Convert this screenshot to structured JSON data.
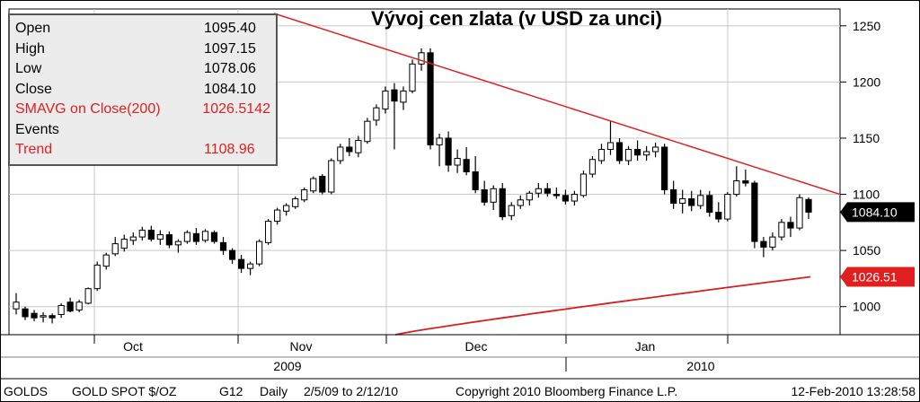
{
  "legend": {
    "rows": [
      {
        "label": "Open",
        "value": "1095.40",
        "color": "#000000"
      },
      {
        "label": "High",
        "value": "1097.15",
        "color": "#000000"
      },
      {
        "label": "Low",
        "value": "1078.06",
        "color": "#000000"
      },
      {
        "label": "Close",
        "value": "1084.10",
        "color": "#000000"
      },
      {
        "label": "SMAVG on Close(200)",
        "value": "1026.5142",
        "color": "#e02020"
      },
      {
        "label": "Events",
        "value": "",
        "color": "#000000"
      },
      {
        "label": "Trend",
        "value": "1108.96",
        "color": "#e02020"
      }
    ]
  },
  "tags": {
    "close": "1084.10",
    "sma": "1026.51"
  },
  "footer": {
    "ticker": "GOLDS",
    "name": "GOLD SPOT $/OZ",
    "code": "G12",
    "period": "Daily",
    "range": "2/5/09 to 2/12/10",
    "copyright": "Copyright 2010 Bloomberg Finance L.P.",
    "timestamp": "12-Feb-2010 13:28:58"
  },
  "colors": {
    "up": "#ffffff",
    "down": "#000000",
    "trend": "#e02020",
    "sma": "#d81e1e",
    "grid": "#c8c8c8"
  },
  "chart_data": {
    "type": "candlestick",
    "title": "Vývoj cen zlata (v USD za unci)",
    "ylim": [
      975,
      1265
    ],
    "yticks": [
      1000,
      1050,
      1100,
      1150,
      1200,
      1250
    ],
    "xticks": [
      "Oct",
      "Nov",
      "Dec",
      "Jan"
    ],
    "year_labels": [
      "2009",
      "2010"
    ],
    "candles": [
      {
        "o": 998,
        "h": 1012,
        "l": 993,
        "c": 1004
      },
      {
        "o": 998,
        "h": 1000,
        "l": 988,
        "c": 991
      },
      {
        "o": 994,
        "h": 997,
        "l": 987,
        "c": 990
      },
      {
        "o": 991,
        "h": 995,
        "l": 986,
        "c": 992
      },
      {
        "o": 992,
        "h": 994,
        "l": 985,
        "c": 990
      },
      {
        "o": 993,
        "h": 1003,
        "l": 990,
        "c": 1001
      },
      {
        "o": 1004,
        "h": 1008,
        "l": 995,
        "c": 996
      },
      {
        "o": 997,
        "h": 1006,
        "l": 995,
        "c": 1004
      },
      {
        "o": 1003,
        "h": 1017,
        "l": 1002,
        "c": 1016
      },
      {
        "o": 1016,
        "h": 1040,
        "l": 1014,
        "c": 1037
      },
      {
        "o": 1036,
        "h": 1048,
        "l": 1033,
        "c": 1046
      },
      {
        "o": 1047,
        "h": 1062,
        "l": 1045,
        "c": 1056
      },
      {
        "o": 1052,
        "h": 1064,
        "l": 1049,
        "c": 1060
      },
      {
        "o": 1059,
        "h": 1066,
        "l": 1055,
        "c": 1062
      },
      {
        "o": 1062,
        "h": 1071,
        "l": 1059,
        "c": 1068
      },
      {
        "o": 1068,
        "h": 1072,
        "l": 1058,
        "c": 1060
      },
      {
        "o": 1060,
        "h": 1068,
        "l": 1055,
        "c": 1064
      },
      {
        "o": 1064,
        "h": 1067,
        "l": 1052,
        "c": 1055
      },
      {
        "o": 1055,
        "h": 1060,
        "l": 1048,
        "c": 1058
      },
      {
        "o": 1058,
        "h": 1068,
        "l": 1056,
        "c": 1066
      },
      {
        "o": 1065,
        "h": 1070,
        "l": 1055,
        "c": 1058
      },
      {
        "o": 1059,
        "h": 1069,
        "l": 1057,
        "c": 1067
      },
      {
        "o": 1066,
        "h": 1068,
        "l": 1056,
        "c": 1058
      },
      {
        "o": 1057,
        "h": 1062,
        "l": 1046,
        "c": 1050
      },
      {
        "o": 1050,
        "h": 1052,
        "l": 1038,
        "c": 1042
      },
      {
        "o": 1042,
        "h": 1046,
        "l": 1030,
        "c": 1034
      },
      {
        "o": 1034,
        "h": 1040,
        "l": 1028,
        "c": 1038
      },
      {
        "o": 1038,
        "h": 1060,
        "l": 1036,
        "c": 1058
      },
      {
        "o": 1057,
        "h": 1078,
        "l": 1055,
        "c": 1076
      },
      {
        "o": 1076,
        "h": 1088,
        "l": 1073,
        "c": 1086
      },
      {
        "o": 1085,
        "h": 1092,
        "l": 1081,
        "c": 1090
      },
      {
        "o": 1089,
        "h": 1098,
        "l": 1087,
        "c": 1096
      },
      {
        "o": 1095,
        "h": 1106,
        "l": 1093,
        "c": 1104
      },
      {
        "o": 1103,
        "h": 1116,
        "l": 1101,
        "c": 1114
      },
      {
        "o": 1116,
        "h": 1118,
        "l": 1100,
        "c": 1102
      },
      {
        "o": 1102,
        "h": 1132,
        "l": 1100,
        "c": 1130
      },
      {
        "o": 1130,
        "h": 1145,
        "l": 1127,
        "c": 1142
      },
      {
        "o": 1142,
        "h": 1150,
        "l": 1134,
        "c": 1138
      },
      {
        "o": 1137,
        "h": 1152,
        "l": 1133,
        "c": 1148
      },
      {
        "o": 1147,
        "h": 1168,
        "l": 1145,
        "c": 1165
      },
      {
        "o": 1166,
        "h": 1180,
        "l": 1161,
        "c": 1177
      },
      {
        "o": 1176,
        "h": 1196,
        "l": 1172,
        "c": 1192
      },
      {
        "o": 1193,
        "h": 1199,
        "l": 1140,
        "c": 1183
      },
      {
        "o": 1182,
        "h": 1196,
        "l": 1175,
        "c": 1192
      },
      {
        "o": 1192,
        "h": 1220,
        "l": 1190,
        "c": 1216
      },
      {
        "o": 1216,
        "h": 1230,
        "l": 1210,
        "c": 1226
      },
      {
        "o": 1226,
        "h": 1230,
        "l": 1140,
        "c": 1144
      },
      {
        "o": 1144,
        "h": 1154,
        "l": 1125,
        "c": 1150
      },
      {
        "o": 1150,
        "h": 1156,
        "l": 1120,
        "c": 1126
      },
      {
        "o": 1126,
        "h": 1140,
        "l": 1119,
        "c": 1132
      },
      {
        "o": 1131,
        "h": 1142,
        "l": 1117,
        "c": 1120
      },
      {
        "o": 1120,
        "h": 1134,
        "l": 1101,
        "c": 1104
      },
      {
        "o": 1104,
        "h": 1112,
        "l": 1090,
        "c": 1093
      },
      {
        "o": 1093,
        "h": 1108,
        "l": 1086,
        "c": 1105
      },
      {
        "o": 1105,
        "h": 1110,
        "l": 1077,
        "c": 1080
      },
      {
        "o": 1081,
        "h": 1093,
        "l": 1077,
        "c": 1090
      },
      {
        "o": 1090,
        "h": 1099,
        "l": 1087,
        "c": 1095
      },
      {
        "o": 1095,
        "h": 1103,
        "l": 1090,
        "c": 1101
      },
      {
        "o": 1101,
        "h": 1110,
        "l": 1097,
        "c": 1105
      },
      {
        "o": 1105,
        "h": 1110,
        "l": 1098,
        "c": 1101
      },
      {
        "o": 1100,
        "h": 1106,
        "l": 1096,
        "c": 1099
      },
      {
        "o": 1099,
        "h": 1104,
        "l": 1091,
        "c": 1094
      },
      {
        "o": 1094,
        "h": 1103,
        "l": 1090,
        "c": 1100
      },
      {
        "o": 1099,
        "h": 1121,
        "l": 1097,
        "c": 1118
      },
      {
        "o": 1118,
        "h": 1134,
        "l": 1115,
        "c": 1131
      },
      {
        "o": 1130,
        "h": 1145,
        "l": 1127,
        "c": 1140
      },
      {
        "o": 1140,
        "h": 1165,
        "l": 1135,
        "c": 1146
      },
      {
        "o": 1146,
        "h": 1150,
        "l": 1127,
        "c": 1130
      },
      {
        "o": 1130,
        "h": 1143,
        "l": 1126,
        "c": 1140
      },
      {
        "o": 1140,
        "h": 1148,
        "l": 1130,
        "c": 1135
      },
      {
        "o": 1135,
        "h": 1143,
        "l": 1130,
        "c": 1138
      },
      {
        "o": 1138,
        "h": 1146,
        "l": 1133,
        "c": 1142
      },
      {
        "o": 1142,
        "h": 1145,
        "l": 1100,
        "c": 1104
      },
      {
        "o": 1104,
        "h": 1112,
        "l": 1087,
        "c": 1092
      },
      {
        "o": 1092,
        "h": 1104,
        "l": 1083,
        "c": 1096
      },
      {
        "o": 1096,
        "h": 1103,
        "l": 1085,
        "c": 1090
      },
      {
        "o": 1090,
        "h": 1104,
        "l": 1087,
        "c": 1099
      },
      {
        "o": 1099,
        "h": 1103,
        "l": 1080,
        "c": 1084
      },
      {
        "o": 1084,
        "h": 1093,
        "l": 1075,
        "c": 1078
      },
      {
        "o": 1078,
        "h": 1102,
        "l": 1076,
        "c": 1100
      },
      {
        "o": 1100,
        "h": 1125,
        "l": 1098,
        "c": 1112
      },
      {
        "o": 1112,
        "h": 1122,
        "l": 1107,
        "c": 1110
      },
      {
        "o": 1110,
        "h": 1112,
        "l": 1052,
        "c": 1058
      },
      {
        "o": 1058,
        "h": 1062,
        "l": 1044,
        "c": 1053
      },
      {
        "o": 1053,
        "h": 1066,
        "l": 1050,
        "c": 1062
      },
      {
        "o": 1062,
        "h": 1078,
        "l": 1059,
        "c": 1075
      },
      {
        "o": 1075,
        "h": 1080,
        "l": 1062,
        "c": 1070
      },
      {
        "o": 1070,
        "h": 1100,
        "l": 1068,
        "c": 1097
      },
      {
        "o": 1095.4,
        "h": 1097.15,
        "l": 1078.06,
        "c": 1084.1
      }
    ],
    "trend": {
      "start": 1265,
      "end": 1100
    },
    "sma_line": {
      "start": 975,
      "end": 1026.51
    }
  }
}
